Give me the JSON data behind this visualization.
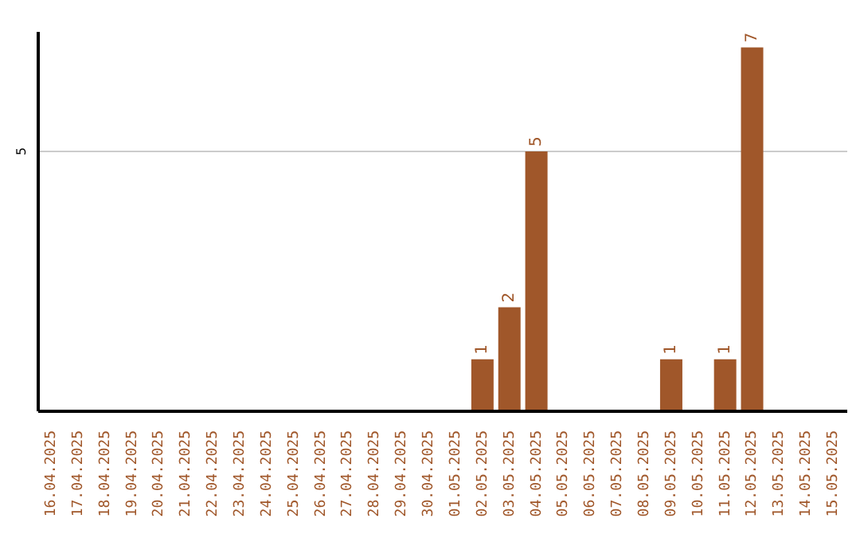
{
  "chart_data": {
    "type": "bar",
    "categories": [
      "16.04.2025",
      "17.04.2025",
      "18.04.2025",
      "19.04.2025",
      "20.04.2025",
      "21.04.2025",
      "22.04.2025",
      "23.04.2025",
      "24.04.2025",
      "25.04.2025",
      "26.04.2025",
      "27.04.2025",
      "28.04.2025",
      "29.04.2025",
      "30.04.2025",
      "01.05.2025",
      "02.05.2025",
      "03.05.2025",
      "04.05.2025",
      "05.05.2025",
      "06.05.2025",
      "07.05.2025",
      "08.05.2025",
      "09.05.2025",
      "10.05.2025",
      "11.05.2025",
      "12.05.2025",
      "13.05.2025",
      "14.05.2025",
      "15.05.2025"
    ],
    "values": [
      null,
      null,
      null,
      null,
      null,
      null,
      null,
      null,
      null,
      null,
      null,
      null,
      null,
      null,
      null,
      null,
      1,
      2,
      5,
      null,
      null,
      null,
      null,
      1,
      null,
      1,
      7,
      null,
      null,
      null
    ],
    "data_labels": true,
    "color": "#a0572a",
    "ylim": [
      0,
      7.3
    ],
    "yticks": [
      5
    ],
    "grid": "y"
  }
}
